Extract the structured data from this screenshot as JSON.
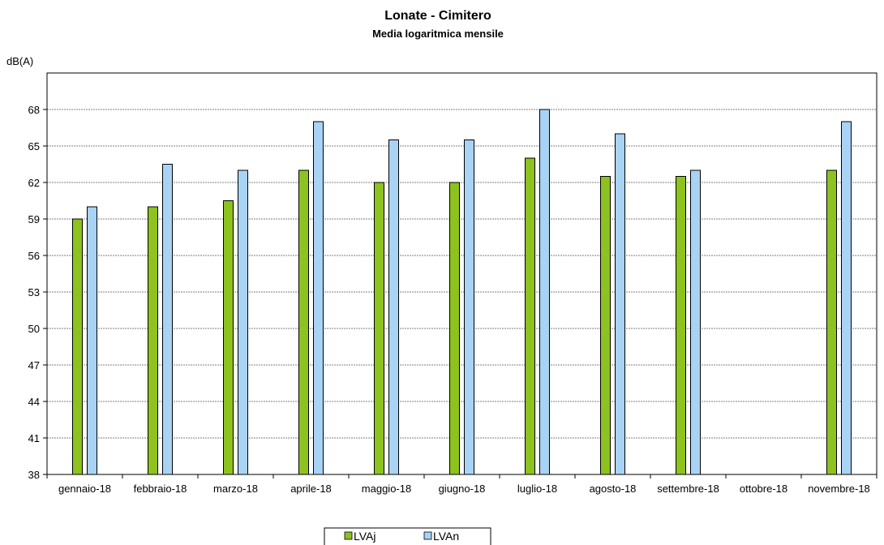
{
  "chart_data": {
    "type": "bar",
    "title": "Lonate - Cimitero",
    "subtitle": "Media logaritmica mensile",
    "ylabel": "dB(A)",
    "xlabel": "",
    "ylim": [
      38,
      71
    ],
    "yticks": [
      38,
      41,
      44,
      47,
      50,
      53,
      56,
      59,
      62,
      65,
      68
    ],
    "grid": "horizontal",
    "legend_position": "bottom",
    "categories": [
      "gennaio-18",
      "febbraio-18",
      "marzo-18",
      "aprile-18",
      "maggio-18",
      "giugno-18",
      "luglio-18",
      "agosto-18",
      "settembre-18",
      "ottobre-18",
      "novembre-18"
    ],
    "series": [
      {
        "name": "LVAj",
        "color": "#8DC21F",
        "values": [
          59,
          60,
          60.5,
          63,
          62,
          62,
          64,
          62.5,
          62.5,
          null,
          63
        ]
      },
      {
        "name": "LVAn",
        "color": "#A9D3F5",
        "values": [
          60,
          63.5,
          63,
          67,
          65.5,
          65.5,
          68,
          66,
          63,
          null,
          67
        ]
      }
    ]
  }
}
